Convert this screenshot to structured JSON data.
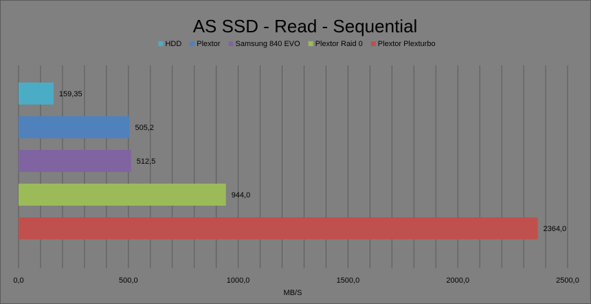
{
  "chart_data": {
    "type": "bar",
    "orientation": "horizontal",
    "title": "AS SSD - Read - Sequential",
    "x_label": "MB/S",
    "categories": [
      null
    ],
    "series": [
      {
        "name": "HDD",
        "color": "#4bacc6",
        "values": [
          159.35
        ],
        "value_labels": [
          "159,35"
        ]
      },
      {
        "name": "Plextor",
        "color": "#4f81bd",
        "values": [
          505.2
        ],
        "value_labels": [
          "505,2"
        ]
      },
      {
        "name": "Samsung 840 EVO",
        "color": "#8064a2",
        "values": [
          512.5
        ],
        "value_labels": [
          "512,5"
        ]
      },
      {
        "name": "Plextor Raid 0",
        "color": "#9bbb59",
        "values": [
          944.0
        ],
        "value_labels": [
          "944,0"
        ]
      },
      {
        "name": "Plextor Plexturbo",
        "color": "#c0504d",
        "values": [
          2364.0
        ],
        "value_labels": [
          "2364,0"
        ]
      }
    ],
    "xlim": [
      0,
      2500
    ],
    "xticks": [
      {
        "value": 0,
        "label": "0,0"
      },
      {
        "value": 500,
        "label": "500,0"
      },
      {
        "value": 1000,
        "label": "1000,0"
      },
      {
        "value": 1500,
        "label": "1500,0"
      },
      {
        "value": 2000,
        "label": "2000,0"
      },
      {
        "value": 2500,
        "label": "2500,0"
      }
    ],
    "grid": true,
    "minor_grid": true,
    "legend": "top"
  }
}
